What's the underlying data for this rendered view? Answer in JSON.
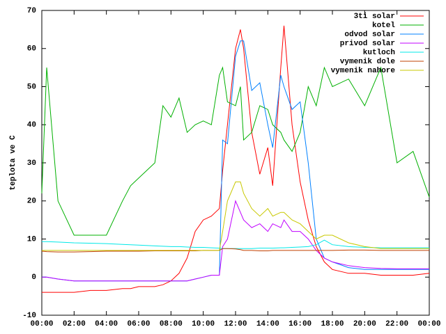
{
  "chart_data": {
    "type": "line",
    "ylabel": "teplota ve C",
    "x": [
      0,
      0.3,
      1,
      2,
      3,
      4,
      5,
      5.5,
      6,
      7,
      7.5,
      8,
      8.5,
      9,
      9.5,
      10,
      10.5,
      11,
      11.2,
      11.5,
      12,
      12.3,
      12.5,
      13,
      13.5,
      14,
      14.3,
      14.8,
      15,
      15.5,
      16,
      16.5,
      17,
      17.5,
      18,
      19,
      20,
      21,
      22,
      23,
      24
    ],
    "xlim": [
      0,
      24
    ],
    "xticks": [
      {
        "value": 0,
        "label": "00:00"
      },
      {
        "value": 2,
        "label": "02:00"
      },
      {
        "value": 4,
        "label": "04:00"
      },
      {
        "value": 6,
        "label": "06:00"
      },
      {
        "value": 8,
        "label": "08:00"
      },
      {
        "value": 10,
        "label": "10:00"
      },
      {
        "value": 12,
        "label": "12:00"
      },
      {
        "value": 14,
        "label": "14:00"
      },
      {
        "value": 16,
        "label": "16:00"
      },
      {
        "value": 18,
        "label": "18:00"
      },
      {
        "value": 20,
        "label": "20:00"
      },
      {
        "value": 22,
        "label": "22:00"
      },
      {
        "value": 24,
        "label": "00:00"
      }
    ],
    "ylim": [
      -10,
      70
    ],
    "yticks": [
      -10,
      0,
      10,
      20,
      30,
      40,
      50,
      60,
      70
    ],
    "grid": false,
    "legend": "top-right",
    "series": [
      {
        "name": "3ti solar",
        "color": "#ff0000",
        "values": [
          -4,
          -4,
          -4,
          -4,
          -3.5,
          -3.5,
          -3,
          -3,
          -2.5,
          -2.5,
          -2,
          -1,
          1,
          5,
          12,
          15,
          16,
          18,
          28,
          40,
          60,
          65,
          60,
          38,
          27,
          34,
          24,
          55,
          66,
          40,
          25,
          15,
          8,
          4,
          2,
          1,
          1,
          0.5,
          0.5,
          0.5,
          1
        ]
      },
      {
        "name": "kotel",
        "color": "#00b000",
        "values": [
          22,
          55,
          20,
          11,
          11,
          11,
          20,
          24,
          26,
          30,
          45,
          42,
          47,
          38,
          40,
          41,
          40,
          53,
          55,
          46,
          45,
          50,
          36,
          38,
          45,
          44,
          40,
          38,
          36,
          33,
          38,
          50,
          45,
          55,
          50,
          52,
          45,
          55,
          30,
          33,
          21
        ]
      },
      {
        "name": "odvod solar",
        "color": "#0080ff",
        "values": [
          0,
          0,
          -0.5,
          -1,
          -1,
          -1,
          -1,
          -1,
          -1,
          -1,
          -1,
          -1,
          -1,
          -1,
          -0.5,
          0,
          0.5,
          0.5,
          36,
          35,
          58,
          62,
          62,
          49,
          51,
          40,
          34,
          53,
          50,
          44,
          46,
          30,
          10,
          5,
          4,
          2.5,
          2,
          2,
          2,
          2,
          2
        ]
      },
      {
        "name": "privod solar",
        "color": "#c000ff",
        "values": [
          0,
          0,
          -0.5,
          -1,
          -1,
          -1,
          -1,
          -1,
          -1,
          -1,
          -1,
          -1,
          -1,
          -1,
          -0.5,
          0,
          0.5,
          0.5,
          8,
          10,
          20,
          17,
          15,
          13,
          14,
          12,
          14,
          13,
          15,
          12,
          12,
          10,
          7,
          5,
          4,
          3,
          2.5,
          2.3,
          2.2,
          2.2,
          2.2
        ]
      },
      {
        "name": "kutloch",
        "color": "#00e8e8",
        "values": [
          9.3,
          9.3,
          9.2,
          9,
          8.9,
          8.8,
          8.6,
          8.5,
          8.4,
          8.2,
          8.1,
          8,
          8,
          7.9,
          7.8,
          7.8,
          7.7,
          7.6,
          7.5,
          7.5,
          7.5,
          7.5,
          7.5,
          7.5,
          7.6,
          7.6,
          7.6,
          7.7,
          7.7,
          7.8,
          7.9,
          8,
          8.5,
          9.7,
          8.5,
          8,
          7.8,
          7.7,
          7.7,
          7.7,
          7.7
        ]
      },
      {
        "name": "vymenik dole",
        "color": "#c04000",
        "values": [
          6.8,
          6.7,
          6.6,
          6.6,
          6.7,
          6.8,
          6.8,
          6.8,
          6.8,
          6.9,
          6.9,
          6.9,
          6.9,
          6.9,
          6.9,
          7,
          7,
          7,
          7.5,
          7.5,
          7.4,
          7.2,
          7,
          7,
          6.9,
          6.9,
          7,
          7,
          7,
          7,
          7,
          7,
          7,
          7,
          7,
          7.1,
          7.1,
          7,
          7,
          7,
          7
        ]
      },
      {
        "name": "vymenik nahore",
        "color": "#c8c800",
        "values": [
          7,
          7,
          7,
          7,
          7,
          7,
          7,
          7,
          7,
          7,
          7,
          7,
          7,
          7,
          7,
          7,
          7,
          7,
          12,
          20,
          25,
          25,
          22,
          18,
          16,
          18,
          16,
          17,
          17,
          15,
          14,
          12,
          10,
          11,
          11,
          9,
          8,
          7.5,
          7.5,
          7.5,
          7.5
        ]
      }
    ]
  }
}
